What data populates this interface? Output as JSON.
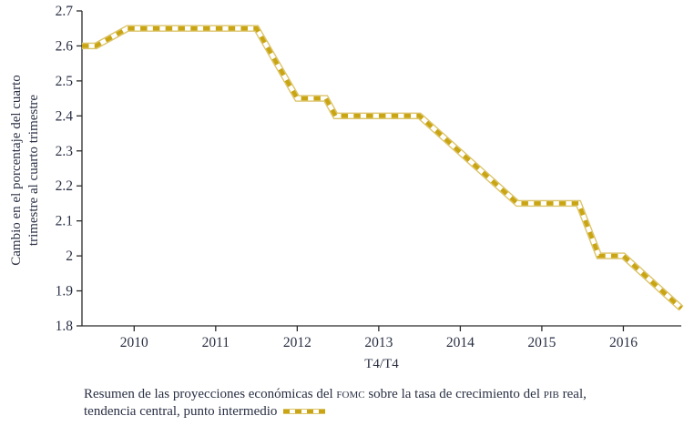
{
  "y_axis": {
    "line1": "Cambio en el porcentaje del cuarto",
    "line2": "trimestre al cuarto trimestre"
  },
  "x_axis": {
    "label": "T4/T4"
  },
  "caption": {
    "l1a": "Resumen de las proyecciones económicas del ",
    "fomc": "fomc",
    "l1b": " sobre la tasa de crecimiento del ",
    "pib": "pib",
    "l1c": " real,",
    "l2": "tendencia central, punto intermedio"
  },
  "colors": {
    "line_gold": "#C9A513",
    "line_gold_edge": "#DCC46A",
    "line_dash_white": "#FFFFFF",
    "text": "#2A3044",
    "axis": "#2B2B2B"
  },
  "chart_data": {
    "type": "line",
    "title": "",
    "xlabel": "T4/T4",
    "ylabel": "Cambio en el porcentaje del cuarto trimestre al cuarto trimestre",
    "xlim": [
      2009.36,
      2016.71
    ],
    "ylim": [
      1.8,
      2.7
    ],
    "x_ticks": [
      "2010",
      "2011",
      "2012",
      "2013",
      "2014",
      "2015",
      "2016"
    ],
    "y_ticks": [
      "2.7",
      "2.6",
      "2.5",
      "2.4",
      "2.3",
      "2.2",
      "2.1",
      "2",
      "1.9",
      "1.8"
    ],
    "grid": false,
    "legend_position": "in-caption-below-chart",
    "series": [
      {
        "name": "Proyecciones económicas del FOMC: tasa de crecimiento del PIB real, tendencia central, punto intermedio (T4/T4)",
        "style": "gold band with white center dashes",
        "points": [
          [
            2009.36,
            2.6
          ],
          [
            2009.53,
            2.6
          ],
          [
            2009.92,
            2.65
          ],
          [
            2011.5,
            2.65
          ],
          [
            2012.0,
            2.45
          ],
          [
            2012.35,
            2.45
          ],
          [
            2012.47,
            2.4
          ],
          [
            2013.5,
            2.4
          ],
          [
            2014.7,
            2.15
          ],
          [
            2015.45,
            2.15
          ],
          [
            2015.7,
            2.0
          ],
          [
            2016.0,
            2.0
          ],
          [
            2016.71,
            1.85
          ]
        ]
      }
    ]
  }
}
